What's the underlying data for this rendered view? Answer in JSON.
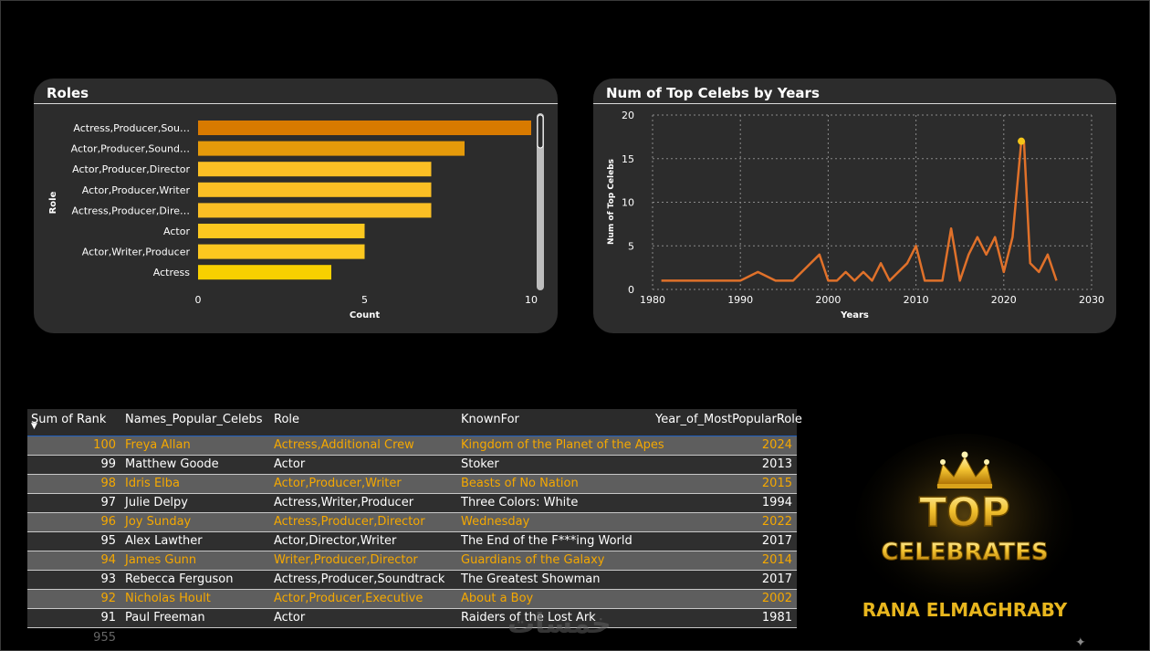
{
  "roles_card": {
    "title": "Roles",
    "chart_data": {
      "type": "bar",
      "orientation": "horizontal",
      "categories": [
        "Actress,Producer,Sou…",
        "Actor,Producer,Sound…",
        "Actor,Producer,Director",
        "Actor,Producer,Writer",
        "Actress,Producer,Dire…",
        "Actor",
        "Actor,Writer,Producer",
        "Actress"
      ],
      "values": [
        10,
        8,
        7,
        7,
        7,
        5,
        5,
        4
      ],
      "colors": [
        "#d87a00",
        "#e59a0a",
        "#fbbf24",
        "#fbbf24",
        "#fbbf24",
        "#fcc81f",
        "#fcc81f",
        "#f8d000"
      ],
      "xlabel": "Count",
      "ylabel": "Role",
      "xlim": [
        0,
        10
      ],
      "xticks": [
        "0",
        "5",
        "10"
      ]
    }
  },
  "years_card": {
    "title": "Num of Top Celebs by Years",
    "chart_data": {
      "type": "line",
      "xlabel": "Years",
      "ylabel": "Num of Top Celebs",
      "xlim": [
        1980,
        2030
      ],
      "ylim": [
        0,
        20
      ],
      "xticks": [
        "1980",
        "1990",
        "2000",
        "2010",
        "2020",
        "2030"
      ],
      "yticks": [
        "0",
        "5",
        "10",
        "15",
        "20"
      ],
      "grid": true,
      "line_color": "#e0712a",
      "highlight_color": "#f5c518",
      "highlight_index": 35,
      "x": [
        1981,
        1982,
        1983,
        1984,
        1985,
        1986,
        1987,
        1988,
        1989,
        1990,
        1992,
        1994,
        1996,
        1999,
        2000,
        2001,
        2002,
        2003,
        2004,
        2005,
        2006,
        2007,
        2009,
        2010,
        2011,
        2013,
        2014,
        2015,
        2016,
        2017,
        2018,
        2019,
        2020,
        2021,
        2022,
        2022.3,
        2023,
        2024,
        2025,
        2026
      ],
      "y": [
        1,
        1,
        1,
        1,
        1,
        1,
        1,
        1,
        1,
        1,
        2,
        1,
        1,
        4,
        1,
        1,
        2,
        1,
        2,
        1,
        3,
        1,
        3,
        5,
        1,
        1,
        7,
        1,
        4,
        6,
        4,
        6,
        2,
        6,
        17,
        17,
        3,
        2,
        4,
        1
      ],
      "highlight_point": {
        "x": 2022,
        "y": 17
      }
    }
  },
  "table": {
    "headers": [
      "Sum of Rank",
      "Names_Popular_Celebs",
      "Role",
      "KnownFor",
      "Year_of_MostPopularRole"
    ],
    "sort_indicator": "▼",
    "rows": [
      [
        "100",
        "Freya Allan",
        "Actress,Additional Crew",
        "Kingdom of the Planet of the Apes",
        "2024"
      ],
      [
        "99",
        "Matthew Goode",
        "Actor",
        "Stoker",
        "2013"
      ],
      [
        "98",
        "Idris Elba",
        "Actor,Producer,Writer",
        "Beasts of No Nation",
        "2015"
      ],
      [
        "97",
        "Julie Delpy",
        "Actress,Writer,Producer",
        "Three Colors: White",
        "1994"
      ],
      [
        "96",
        "Joy Sunday",
        "Actress,Producer,Director",
        "Wednesday",
        "2022"
      ],
      [
        "95",
        "Alex Lawther",
        "Actor,Director,Writer",
        "The End of the F***ing World",
        "2017"
      ],
      [
        "94",
        "James Gunn",
        "Writer,Producer,Director",
        "Guardians of the Galaxy",
        "2014"
      ],
      [
        "93",
        "Rebecca Ferguson",
        "Actress,Producer,Soundtrack",
        "The Greatest Showman",
        "2017"
      ],
      [
        "92",
        "Nicholas Hoult",
        "Actor,Producer,Executive",
        "About a Boy",
        "2002"
      ],
      [
        "91",
        "Paul Freeman",
        "Actor",
        "Raiders of the Lost Ark",
        "1981"
      ]
    ],
    "total": "955"
  },
  "logo": {
    "line1": "TOP",
    "line2": "CELEBRATES",
    "author": "RANA ELMAGHRABY"
  },
  "watermark": "خمسات",
  "sparkle": "✦"
}
